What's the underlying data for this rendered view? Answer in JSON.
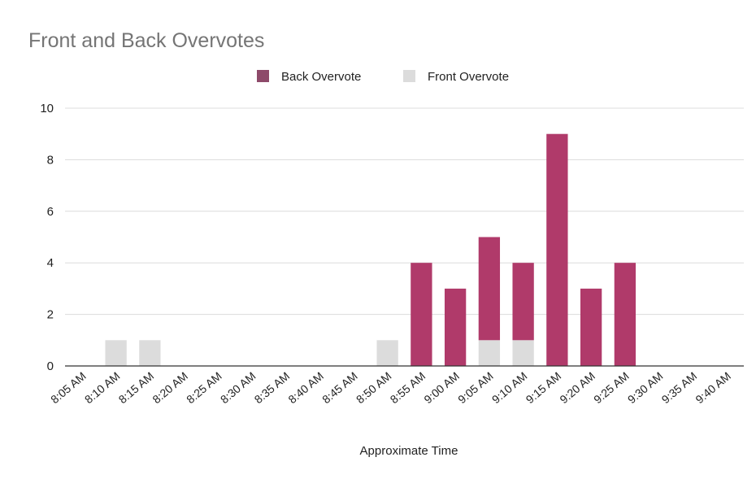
{
  "chart_data": {
    "type": "bar",
    "stacked": true,
    "title": "Front and Back Overvotes",
    "xlabel": "Approximate Time",
    "ylabel": "",
    "ylim": [
      0,
      10
    ],
    "yticks": [
      "0",
      "2",
      "4",
      "6",
      "8",
      "10"
    ],
    "grid": true,
    "legend_position": "top",
    "categories": [
      "8:05 AM",
      "8:10 AM",
      "8:15 AM",
      "8:20 AM",
      "8:25 AM",
      "8:30 AM",
      "8:35 AM",
      "8:40 AM",
      "8:45 AM",
      "8:50 AM",
      "8:55 AM",
      "9:00 AM",
      "9:05 AM",
      "9:10 AM",
      "9:15 AM",
      "9:20 AM",
      "9:25 AM",
      "9:30 AM",
      "9:35 AM",
      "9:40 AM"
    ],
    "series": [
      {
        "name": "Back Overvote",
        "color": "#b03a6a",
        "values": [
          0,
          0,
          0,
          0,
          0,
          0,
          0,
          0,
          0,
          0,
          4,
          3,
          4,
          3,
          9,
          3,
          4,
          0,
          0,
          0
        ]
      },
      {
        "name": "Front Overvote",
        "color": "#dcdcdc",
        "values": [
          0,
          1,
          1,
          0,
          0,
          0,
          0,
          0,
          0,
          1,
          0,
          0,
          1,
          1,
          0,
          0,
          0,
          0,
          0,
          0
        ]
      }
    ],
    "legend_colors": [
      "#8e4a6a",
      "#dcdcdc"
    ]
  }
}
